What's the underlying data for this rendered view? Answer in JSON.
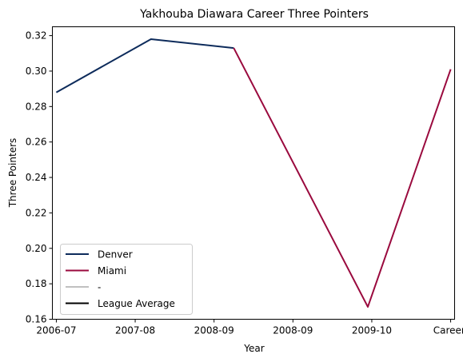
{
  "chart_data": {
    "type": "line",
    "title": "Yakhouba Diawara Career Three Pointers",
    "xlabel": "Year",
    "ylabel": "Three Pointers",
    "x_ticks": [
      "2006-07",
      "2007-08",
      "2008-09",
      "2008-09",
      "2009-10",
      "Career-"
    ],
    "y_ticks": [
      "0.16",
      "0.18",
      "0.20",
      "0.22",
      "0.24",
      "0.26",
      "0.28",
      "0.30",
      "0.32"
    ],
    "ylim": [
      0.16,
      0.325
    ],
    "xlim": [
      -0.05,
      5.05
    ],
    "grid": false,
    "legend_position": "lower-left",
    "series": [
      {
        "name": "Denver",
        "color": "#0d2b5b",
        "points": [
          [
            0,
            0.288
          ],
          [
            1.2,
            0.318
          ],
          [
            2.25,
            0.313
          ]
        ]
      },
      {
        "name": "Miami",
        "color": "#9a0a3e",
        "points": [
          [
            2.25,
            0.313
          ],
          [
            3.95,
            0.167
          ],
          [
            5,
            0.301
          ]
        ]
      }
    ],
    "legend": [
      {
        "label": "Denver",
        "color": "#0d2b5b"
      },
      {
        "label": "Miami",
        "color": "#9a0a3e"
      },
      {
        "label": "-",
        "color": "#c0c0c0"
      },
      {
        "label": "League Average",
        "color": "#000000"
      }
    ]
  }
}
